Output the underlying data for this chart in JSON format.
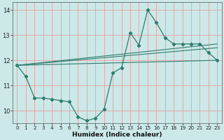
{
  "xlabel": "Humidex (Indice chaleur)",
  "bg_color": "#cce8e8",
  "grid_color": "#e8a0a0",
  "line_color": "#2e7d6e",
  "x_data": [
    0,
    1,
    2,
    3,
    4,
    5,
    6,
    7,
    8,
    9,
    10,
    11,
    12,
    13,
    14,
    15,
    16,
    17,
    18,
    19,
    20,
    21,
    22,
    23
  ],
  "y_main": [
    11.8,
    11.35,
    10.5,
    10.5,
    10.45,
    10.4,
    10.35,
    9.75,
    9.6,
    9.7,
    10.05,
    11.5,
    11.7,
    13.1,
    12.6,
    14.0,
    13.5,
    12.9,
    12.65,
    12.65,
    12.65,
    12.65,
    12.3,
    12.0
  ],
  "line1_x": [
    0,
    23
  ],
  "line1_y": [
    11.8,
    12.0
  ],
  "line2_x": [
    0,
    23
  ],
  "line2_y": [
    11.8,
    12.5
  ],
  "line3_x": [
    0,
    23
  ],
  "line3_y": [
    11.8,
    12.65
  ],
  "xlim": [
    -0.5,
    23.5
  ],
  "ylim": [
    9.5,
    14.3
  ],
  "yticks": [
    10,
    11,
    12,
    13,
    14
  ],
  "xticks": [
    0,
    1,
    2,
    3,
    4,
    5,
    6,
    7,
    8,
    9,
    10,
    11,
    12,
    13,
    14,
    15,
    16,
    17,
    18,
    19,
    20,
    21,
    22,
    23
  ]
}
